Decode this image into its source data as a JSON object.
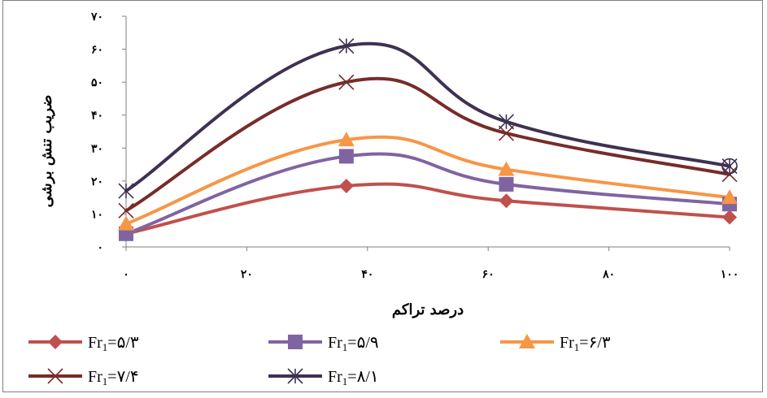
{
  "chart_data": {
    "type": "line",
    "xlabel": "درصد تراکم",
    "ylabel": "ضریب تنش برشی",
    "xlim": [
      0,
      100
    ],
    "ylim": [
      0,
      70
    ],
    "x_ticks": [
      0,
      20,
      40,
      60,
      80,
      100
    ],
    "x_tick_labels": [
      "۰",
      "۲۰",
      "۴۰",
      "۶۰",
      "۸۰",
      "۱۰۰"
    ],
    "y_ticks": [
      0,
      10,
      20,
      30,
      40,
      50,
      60,
      70
    ],
    "y_tick_labels": [
      "۰",
      "۱۰",
      "۲۰",
      "۳۰",
      "۴۰",
      "۵۰",
      "۶۰",
      "۷۰"
    ],
    "smooth": true,
    "grid": false,
    "legend_position": "bottom",
    "series": [
      {
        "name_prefix": "Fr",
        "name_sub": "1",
        "name_suffix": "=۵/۳",
        "color": "#c0504d",
        "marker": "diamond",
        "x": [
          0,
          36.5,
          63,
          100
        ],
        "y": [
          4,
          18.5,
          14,
          9
        ]
      },
      {
        "name_prefix": "Fr",
        "name_sub": "1",
        "name_suffix": "=۵/۹",
        "color": "#8064a2",
        "marker": "square",
        "x": [
          0,
          36.5,
          63,
          100
        ],
        "y": [
          4,
          27.5,
          19,
          13
        ]
      },
      {
        "name_prefix": "Fr",
        "name_sub": "1",
        "name_suffix": "=۶/۳",
        "color": "#f79646",
        "marker": "triangle",
        "x": [
          0,
          36.5,
          63,
          100
        ],
        "y": [
          7,
          32.5,
          23.5,
          15
        ]
      },
      {
        "name_prefix": "Fr",
        "name_sub": "1",
        "name_suffix": "=۷/۴",
        "color": "#772c2a",
        "marker": "x",
        "x": [
          0,
          36.5,
          63,
          100
        ],
        "y": [
          11,
          50,
          34.5,
          22
        ]
      },
      {
        "name_prefix": "Fr",
        "name_sub": "1",
        "name_suffix": "=۸/۱",
        "color": "#3f3151",
        "marker": "star",
        "x": [
          0,
          36.5,
          63,
          100
        ],
        "y": [
          17,
          61,
          38,
          24.5
        ]
      }
    ]
  }
}
